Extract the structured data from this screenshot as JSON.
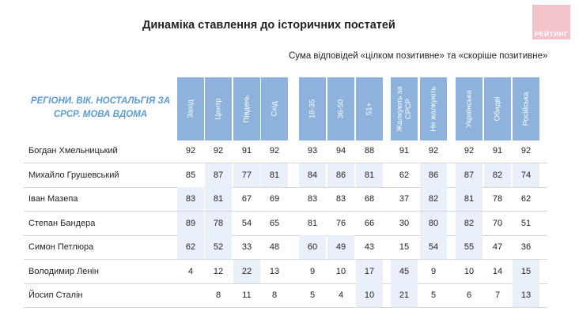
{
  "title": "Динаміка ставлення до історичних постатей",
  "logo_text": "РЕЙТИНГ",
  "subtitle": "Сума відповідей «цілком позитивне» та «скоріше позитивне»",
  "header_label": "РЕГІОНИ. ВІК. НОСТАЛЬГІЯ ЗА СРСР. МОВА ВДОМА",
  "chart_data": {
    "type": "table",
    "columns": [
      "Захід",
      "Центр",
      "Південь",
      "Схід",
      "18-35",
      "36-50",
      "51+",
      "Жалкують за СРСР",
      "Не жалкують",
      "Українська",
      "Обидві",
      "Російська"
    ],
    "column_groups": [
      [
        "Захід",
        "Центр",
        "Південь",
        "Схід"
      ],
      [
        "18-35",
        "36-50",
        "51+"
      ],
      [
        "Жалкують за СРСР",
        "Не жалкують"
      ],
      [
        "Українська",
        "Обидві",
        "Російська"
      ]
    ],
    "rows": [
      {
        "label": "Богдан Хмельницький",
        "values": [
          "92",
          "92",
          "91",
          "92",
          "93",
          "94",
          "88",
          "91",
          "92",
          "92",
          "91",
          "92"
        ]
      },
      {
        "label": "Михайло Грушевський",
        "values": [
          "85",
          "87",
          "77",
          "81",
          "84",
          "86",
          "81",
          "62",
          "86",
          "87",
          "82",
          "74"
        ]
      },
      {
        "label": "Іван Мазепа",
        "values": [
          "83",
          "81",
          "67",
          "69",
          "83",
          "83",
          "68",
          "37",
          "82",
          "81",
          "78",
          "62"
        ]
      },
      {
        "label": "Степан Бандера",
        "values": [
          "89",
          "78",
          "54",
          "65",
          "81",
          "76",
          "66",
          "30",
          "80",
          "82",
          "70",
          "51"
        ]
      },
      {
        "label": "Симон Петлюра",
        "values": [
          "62",
          "52",
          "33",
          "48",
          "60",
          "49",
          "43",
          "15",
          "54",
          "55",
          "47",
          "36"
        ]
      },
      {
        "label": "Володимир Ленін",
        "values": [
          "4",
          "12",
          "22",
          "13",
          "9",
          "10",
          "17",
          "45",
          "9",
          "10",
          "14",
          "15"
        ]
      },
      {
        "label": "Йосип Сталін",
        "values": [
          "",
          "8",
          "11",
          "8",
          "5",
          "4",
          "10",
          "21",
          "5",
          "6",
          "7",
          "13"
        ]
      }
    ],
    "highlight_color": "#e9f0fa",
    "header_color": "#8db3dc"
  }
}
